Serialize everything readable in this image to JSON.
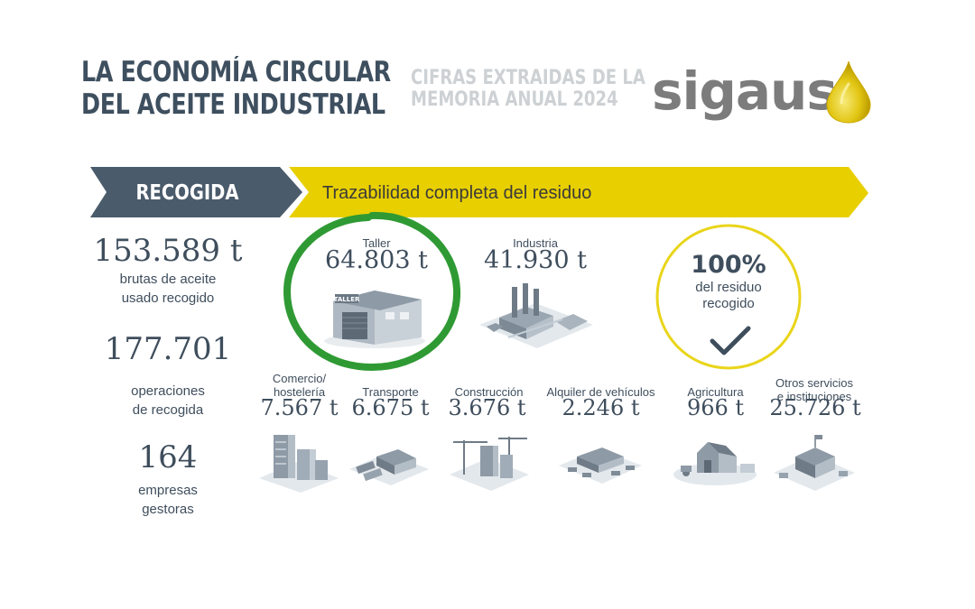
{
  "header": {
    "title_line1": "LA ECONOMÍA CIRCULAR",
    "title_line2": "DEL ACEITE INDUSTRIAL",
    "subtitle_line1": "CIFRAS EXTRAIDAS DE LA",
    "subtitle_line2": "MEMORIA ANUAL 2024",
    "logo": "sigaus"
  },
  "banners": {
    "recogida": "RECOGIDA",
    "trazabilidad": "Trazabilidad completa del residuo"
  },
  "stats": [
    {
      "value": "153.589 t",
      "label_line1": "brutas de aceite",
      "label_line2": "usado recogido"
    },
    {
      "value": "177.701",
      "label_line1": "operaciones",
      "label_line2": "de recogida"
    },
    {
      "value": "164",
      "label_line1": "empresas",
      "label_line2": "gestoras"
    }
  ],
  "featured": [
    {
      "label": "Taller",
      "value": "64.803 t",
      "icon": "workshop-icon",
      "sign": "TALLER"
    },
    {
      "label": "Industria",
      "value": "41.930 t",
      "icon": "factory-icon"
    }
  ],
  "sectors": [
    {
      "label_line1": "Comercio/",
      "label_line2": "hostelería",
      "value": "7.567 t",
      "icon": "commerce-buildings-icon"
    },
    {
      "label_line1": "",
      "label_line2": "Transporte",
      "value": "6.675 t",
      "icon": "transport-depot-icon"
    },
    {
      "label_line1": "",
      "label_line2": "Construcción",
      "value": "3.676 t",
      "icon": "construction-site-icon"
    },
    {
      "label_line1": "",
      "label_line2": "Alquiler de vehículos",
      "value": "2.246 t",
      "icon": "vehicle-rental-icon"
    },
    {
      "label_line1": "",
      "label_line2": "Agricultura",
      "value": "966 t",
      "icon": "farm-icon"
    },
    {
      "label_line1": "Otros servicios",
      "label_line2": "e instituciones",
      "value": "25.726 t",
      "icon": "institutions-icon"
    }
  ],
  "recovery": {
    "percent": "100%",
    "note_line1": "del residuo",
    "note_line2": "recogido"
  },
  "colors": {
    "dark_slate": "#4a5b6b",
    "yellow": "#e8cf00",
    "green_ring": "#2f9a34",
    "yellow_ring": "#e9d51a",
    "drop_gold": "#d9b800"
  }
}
